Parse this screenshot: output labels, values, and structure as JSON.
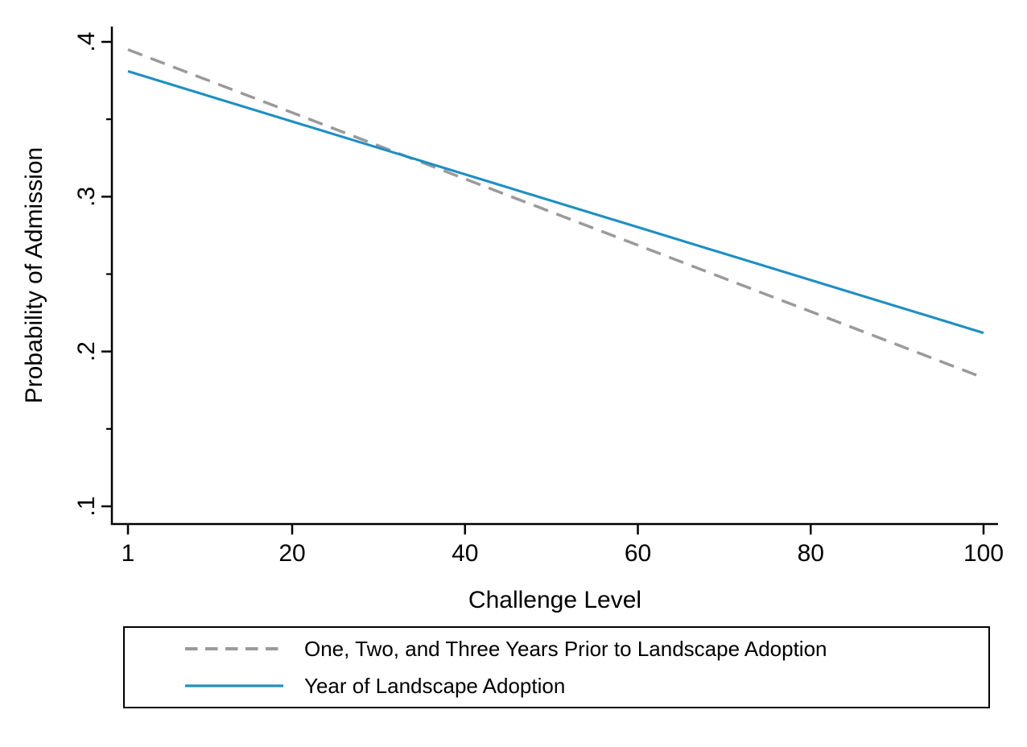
{
  "chart_data": {
    "type": "line",
    "title": "",
    "xlabel": "Challenge Level",
    "ylabel": "Probability of Admission",
    "x_ticks": [
      1,
      20,
      40,
      60,
      80,
      100
    ],
    "x_tick_labels": [
      "1",
      "20",
      "40",
      "60",
      "80",
      "100"
    ],
    "y_ticks": [
      0.1,
      0.2,
      0.3,
      0.4
    ],
    "y_tick_labels": [
      ".1",
      ".2",
      ".3",
      ".4"
    ],
    "y_minor_ticks": [
      0.15,
      0.25,
      0.35
    ],
    "xlim": [
      1,
      100
    ],
    "ylim": [
      0.1,
      0.4
    ],
    "grid": false,
    "legend_position": "bottom",
    "axis_color": "#000000",
    "background_color": "#ffffff",
    "series": [
      {
        "name": "One, Two, and Three Years Prior to Landscape Adoption",
        "color": "#9a9a9a",
        "line_style": "dashed",
        "x": [
          1,
          100
        ],
        "y": [
          0.395,
          0.183
        ]
      },
      {
        "name": "Year of Landscape Adoption",
        "color": "#1d8fc3",
        "line_style": "solid",
        "x": [
          1,
          100
        ],
        "y": [
          0.381,
          0.212
        ]
      }
    ]
  }
}
